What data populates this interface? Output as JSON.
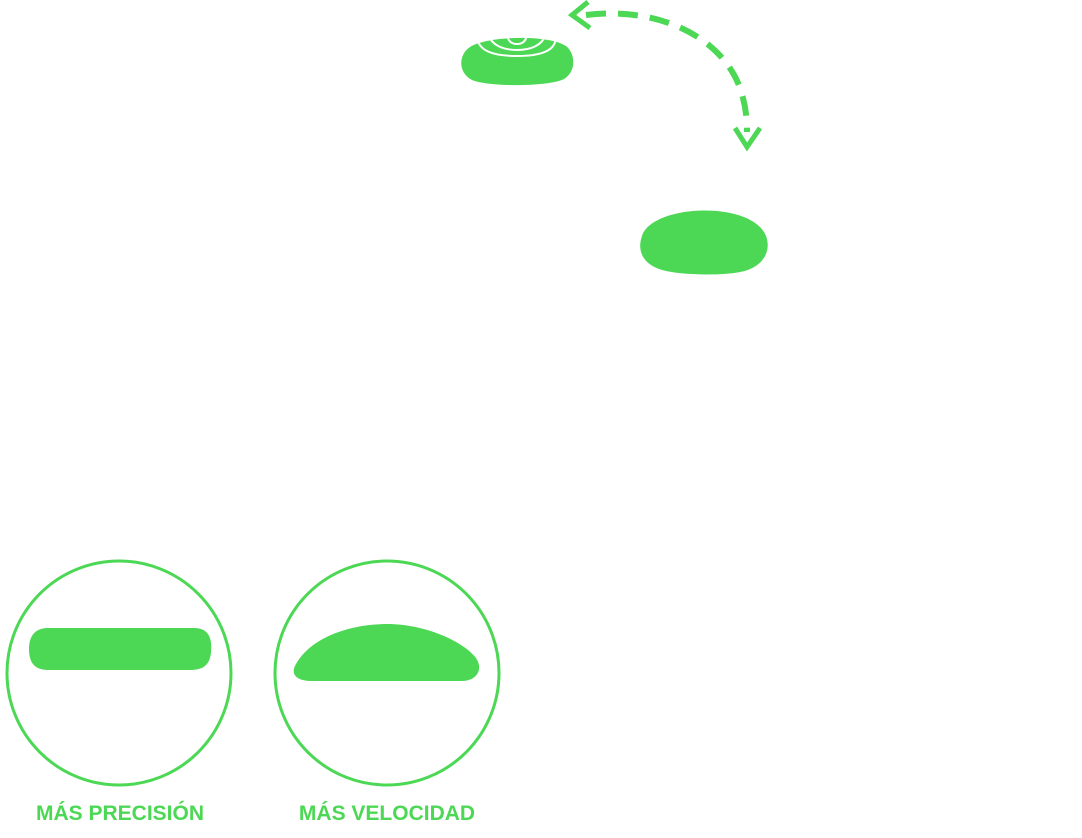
{
  "colors": {
    "accent": "#4cd855",
    "background": "#ffffff"
  },
  "icons": {
    "swap_arrow": "curved-dashed-double-arrow-icon",
    "top_pad": "pad-with-contour-lines-icon",
    "bottom_pad": "rounded-dome-pad-icon",
    "flat_profile": "flat-profile-icon",
    "dome_profile": "dome-profile-icon"
  },
  "captions": {
    "precision": "MÁS PRECISIÓN",
    "speed": "MÁS VELOCIDAD"
  }
}
